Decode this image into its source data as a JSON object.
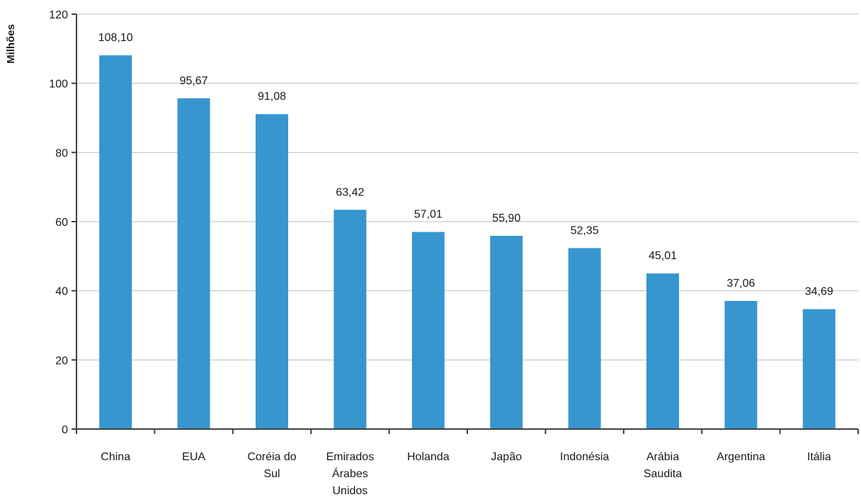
{
  "chart_data": {
    "type": "bar",
    "categories": [
      "China",
      "EUA",
      "Coréia do Sul",
      "Emirados Árabes Unidos",
      "Holanda",
      "Japão",
      "Indonésia",
      "Arábia Saudita",
      "Argentina",
      "Itália"
    ],
    "category_lines": [
      [
        "China"
      ],
      [
        "EUA"
      ],
      [
        "Coréia do",
        "Sul"
      ],
      [
        "Emirados",
        "Árabes",
        "Unidos"
      ],
      [
        "Holanda"
      ],
      [
        "Japão"
      ],
      [
        "Indonésia"
      ],
      [
        "Arábia",
        "Saudita"
      ],
      [
        "Argentina"
      ],
      [
        "Itália"
      ]
    ],
    "values": [
      108.1,
      95.67,
      91.08,
      63.42,
      57.01,
      55.9,
      52.35,
      45.01,
      37.06,
      34.69
    ],
    "value_labels": [
      "108,10",
      "95,67",
      "91,08",
      "63,42",
      "57,01",
      "55,90",
      "52,35",
      "45,01",
      "37,06",
      "34,69"
    ],
    "title": "",
    "xlabel": "",
    "ylabel": "Milhões",
    "ylim": [
      0,
      120
    ],
    "yticks": [
      0,
      20,
      40,
      60,
      80,
      100,
      120
    ],
    "ytick_labels": [
      "0",
      "20",
      "40",
      "60",
      "80",
      "100",
      "120"
    ],
    "grid": true,
    "bar_color": "#3796CF"
  }
}
